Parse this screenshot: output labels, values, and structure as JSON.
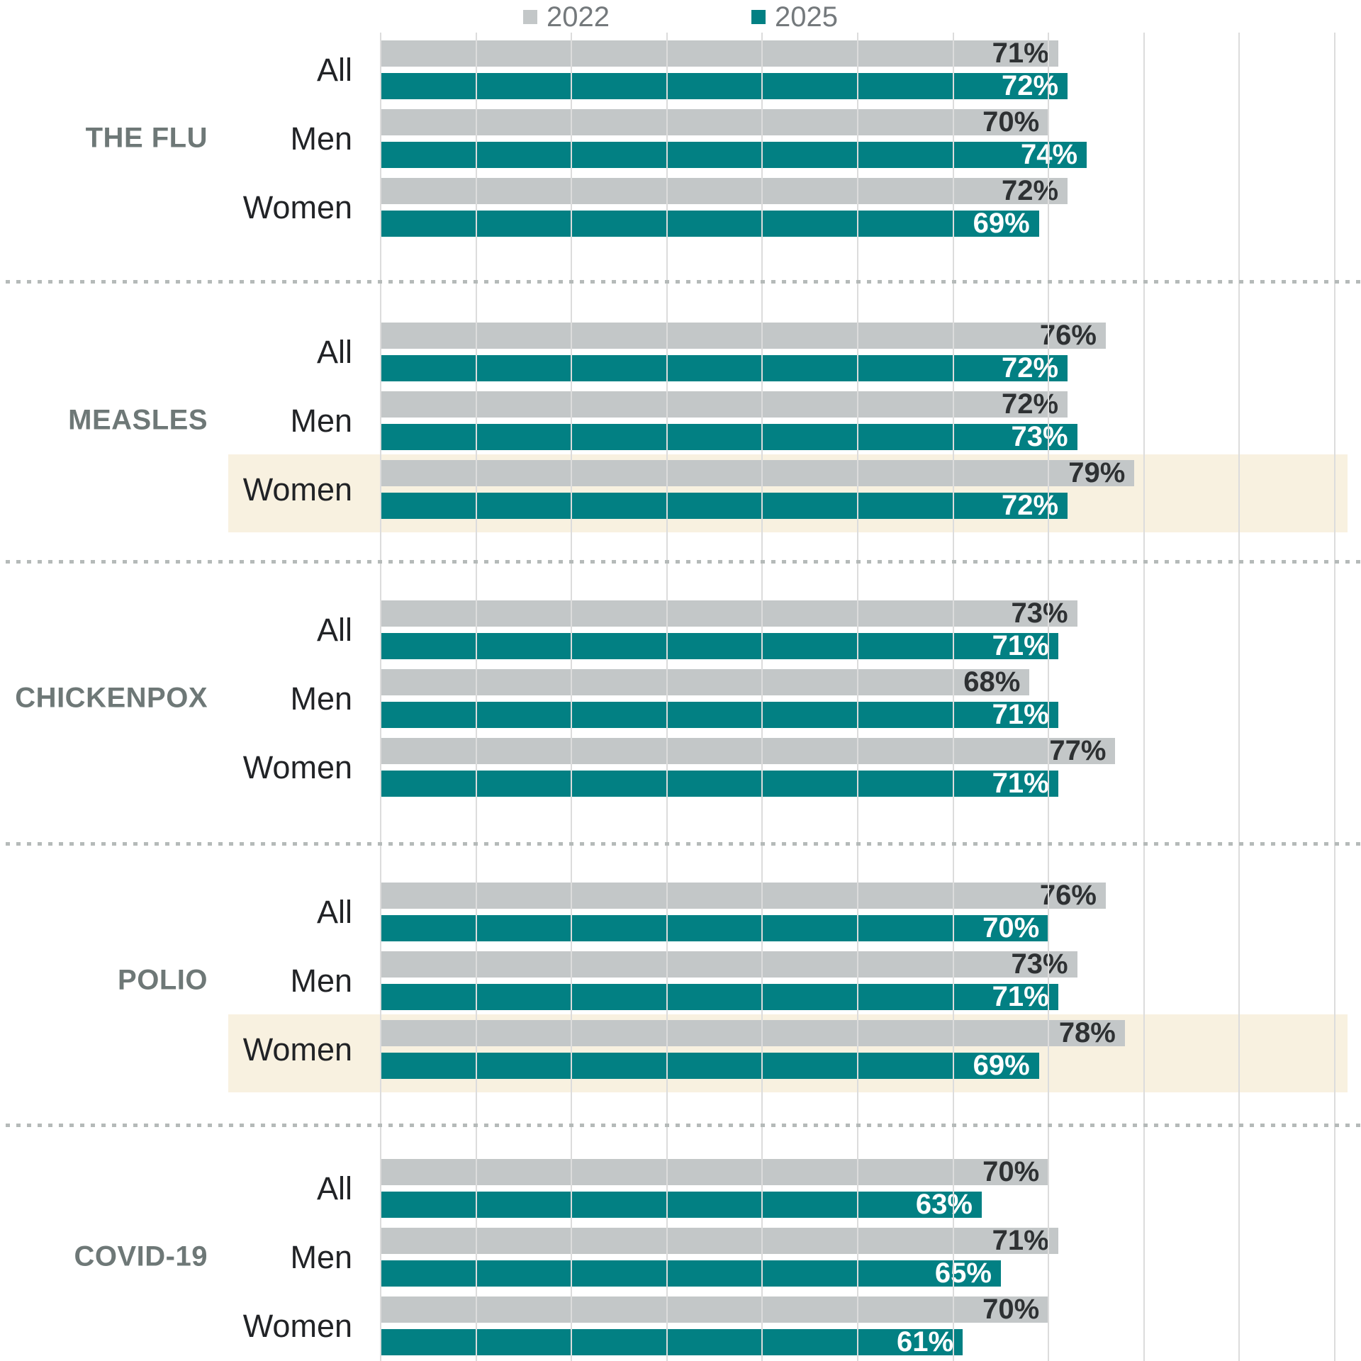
{
  "legend": {
    "items": [
      {
        "label": "2022",
        "color": "#c3c7c8"
      },
      {
        "label": "2025",
        "color": "#028083"
      }
    ]
  },
  "chart_data": {
    "type": "bar",
    "orientation": "horizontal",
    "unit": "%",
    "value_label_format": "{v}%",
    "x_axis": {
      "min": 0,
      "max": 100,
      "gridline_step": 10,
      "tick_labels_visible": false,
      "grid": true
    },
    "legend_position": "top-center",
    "series_years": [
      "2022",
      "2025"
    ],
    "colors": {
      "2022": "#c3c7c8",
      "2025": "#028083",
      "highlight_band": "#f8f1e0",
      "gridline": "#dcdcdc",
      "section_label": "#6e7877",
      "row_label": "#212326",
      "value_on_gray": "#2e3133",
      "value_on_teal": "#ffffff",
      "separator_dots": "#b5bab9",
      "legend_text": "#74797c"
    },
    "groups": [
      {
        "label": "THE FLU",
        "rows": [
          {
            "label": "All",
            "2022": 71,
            "2025": 72,
            "highlighted": false
          },
          {
            "label": "Men",
            "2022": 70,
            "2025": 74,
            "highlighted": false
          },
          {
            "label": "Women",
            "2022": 72,
            "2025": 69,
            "highlighted": false
          }
        ]
      },
      {
        "label": "MEASLES",
        "rows": [
          {
            "label": "All",
            "2022": 76,
            "2025": 72,
            "highlighted": false
          },
          {
            "label": "Men",
            "2022": 72,
            "2025": 73,
            "highlighted": false
          },
          {
            "label": "Women",
            "2022": 79,
            "2025": 72,
            "highlighted": true
          }
        ]
      },
      {
        "label": "CHICKENPOX",
        "rows": [
          {
            "label": "All",
            "2022": 73,
            "2025": 71,
            "highlighted": false
          },
          {
            "label": "Men",
            "2022": 68,
            "2025": 71,
            "highlighted": false
          },
          {
            "label": "Women",
            "2022": 77,
            "2025": 71,
            "highlighted": false
          }
        ]
      },
      {
        "label": "POLIO",
        "rows": [
          {
            "label": "All",
            "2022": 76,
            "2025": 70,
            "highlighted": false
          },
          {
            "label": "Men",
            "2022": 73,
            "2025": 71,
            "highlighted": false
          },
          {
            "label": "Women",
            "2022": 78,
            "2025": 69,
            "highlighted": true
          }
        ]
      },
      {
        "label": "COVID-19",
        "rows": [
          {
            "label": "All",
            "2022": 70,
            "2025": 63,
            "highlighted": false
          },
          {
            "label": "Men",
            "2022": 71,
            "2025": 65,
            "highlighted": false
          },
          {
            "label": "Women",
            "2022": 70,
            "2025": 61,
            "highlighted": false
          }
        ]
      }
    ]
  }
}
